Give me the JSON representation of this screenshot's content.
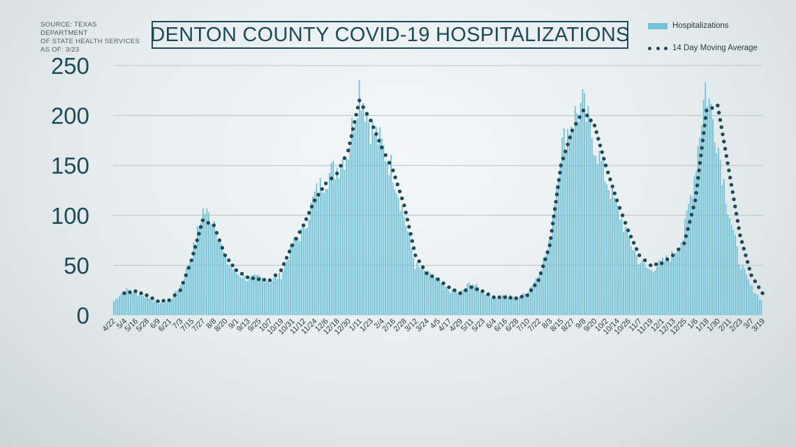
{
  "source": {
    "line1": "SOURCE: TEXAS DEPARTMENT",
    "line2": "OF STATE HEALTH SERVICES",
    "line3": "AS OF: 3/23"
  },
  "chart_data": {
    "type": "bar",
    "title": "DENTON COUNTY COVID-19 HOSPITALIZATIONS",
    "xlabel": "",
    "ylabel": "",
    "ylim": [
      0,
      250
    ],
    "yticks": [
      0,
      50,
      100,
      150,
      200,
      250
    ],
    "grid": true,
    "legend_position": "top-right",
    "colors": {
      "bars": "#72c3d8",
      "moving_average": "#1d4a57"
    },
    "x_tick_labels": [
      "4/22",
      "5/4",
      "5/16",
      "5/28",
      "6/9",
      "6/21",
      "7/3",
      "7/15",
      "7/27",
      "8/8",
      "8/20",
      "9/1",
      "9/13",
      "9/25",
      "10/7",
      "10/19",
      "10/31",
      "11/12",
      "11/24",
      "12/6",
      "12/18",
      "12/30",
      "1/11",
      "1/23",
      "2/4",
      "2/16",
      "2/28",
      "3/12",
      "3/24",
      "4/5",
      "4/17",
      "4/29",
      "5/11",
      "5/23",
      "6/4",
      "6/16",
      "6/28",
      "7/10",
      "7/22",
      "8/3",
      "8/15",
      "8/27",
      "9/8",
      "9/20",
      "10/2",
      "10/14",
      "10/26",
      "11/7",
      "11/19",
      "12/1",
      "12/13",
      "12/25",
      "1/6",
      "1/18",
      "1/30",
      "2/11",
      "2/23",
      "3/7",
      "3/19"
    ],
    "series": [
      {
        "name": "Hospitalizations",
        "kind": "bar",
        "values_by_tick": [
          14,
          26,
          22,
          18,
          12,
          14,
          30,
          60,
          105,
          95,
          55,
          42,
          36,
          38,
          34,
          40,
          70,
          85,
          120,
          138,
          148,
          165,
          230,
          190,
          170,
          145,
          100,
          50,
          42,
          35,
          25,
          22,
          33,
          24,
          18,
          20,
          18,
          22,
          40,
          70,
          165,
          195,
          210,
          175,
          140,
          110,
          80,
          55,
          45,
          52,
          60,
          78,
          140,
          230,
          180,
          110,
          55,
          30,
          15
        ]
      },
      {
        "name": "14 Day Moving Average",
        "kind": "dotted-line",
        "values_by_tick": [
          null,
          22,
          24,
          20,
          14,
          15,
          25,
          55,
          95,
          90,
          60,
          45,
          38,
          36,
          35,
          45,
          70,
          90,
          115,
          132,
          142,
          165,
          215,
          195,
          168,
          145,
          110,
          60,
          42,
          36,
          28,
          22,
          28,
          24,
          18,
          18,
          17,
          20,
          35,
          70,
          150,
          185,
          205,
          190,
          150,
          115,
          85,
          60,
          50,
          52,
          60,
          72,
          115,
          205,
          210,
          145,
          80,
          40,
          22
        ]
      }
    ]
  }
}
